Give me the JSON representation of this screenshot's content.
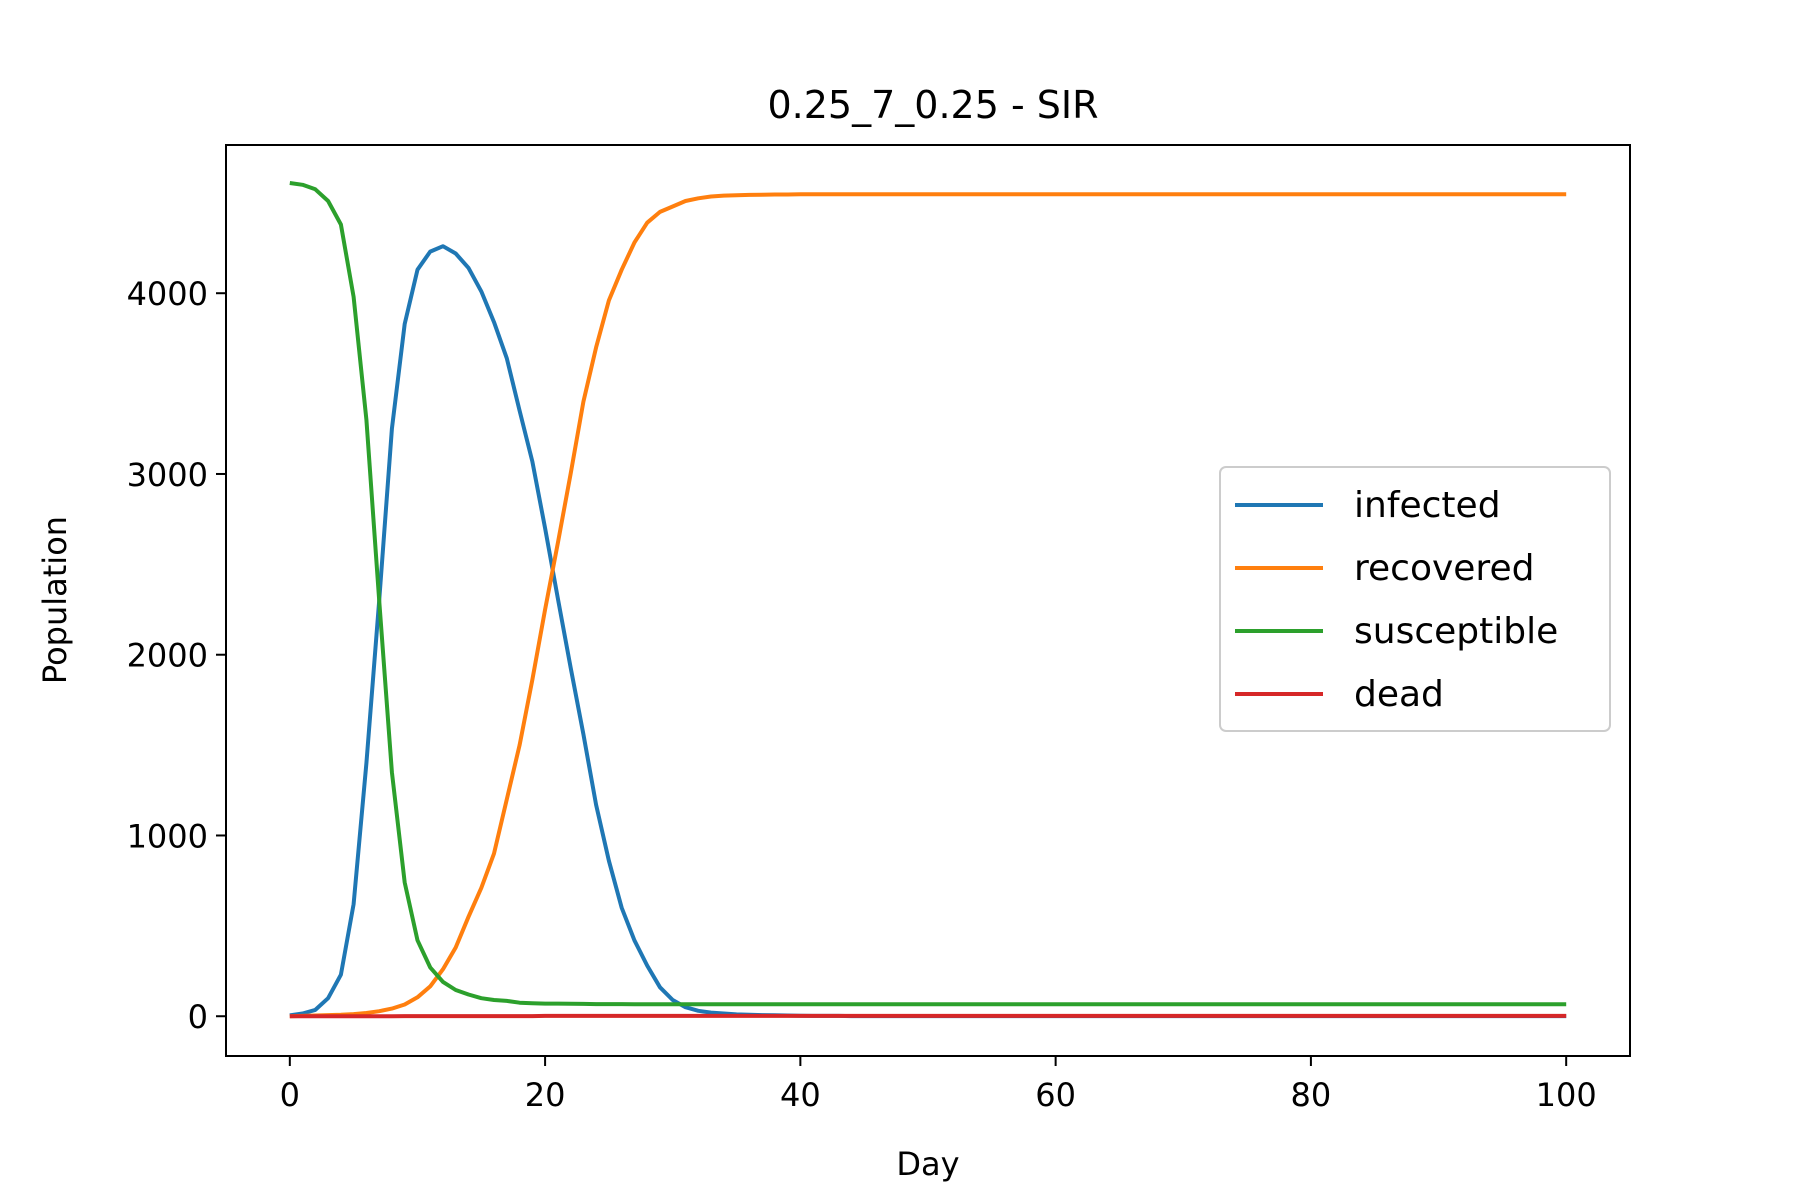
{
  "chart_data": {
    "type": "line",
    "title": "0.25_7_0.25 - SIR",
    "xlabel": "Day",
    "ylabel": "Population",
    "xlim": [
      -5,
      105
    ],
    "ylim": [
      -220,
      4820
    ],
    "x_ticks": [
      0,
      20,
      40,
      60,
      80,
      100
    ],
    "y_ticks": [
      0,
      1000,
      2000,
      3000,
      4000
    ],
    "grid": false,
    "legend_position": "center-right",
    "x": [
      0,
      1,
      2,
      3,
      4,
      5,
      6,
      7,
      8,
      9,
      10,
      11,
      12,
      13,
      14,
      15,
      16,
      17,
      18,
      19,
      20,
      21,
      22,
      23,
      24,
      25,
      26,
      27,
      28,
      29,
      30,
      31,
      32,
      33,
      34,
      35,
      36,
      37,
      38,
      39,
      40,
      41,
      42,
      43,
      44,
      45,
      46,
      47,
      48,
      49,
      50,
      51,
      52,
      53,
      54,
      55,
      56,
      57,
      58,
      59,
      60,
      61,
      62,
      63,
      64,
      65,
      66,
      67,
      68,
      69,
      70,
      71,
      72,
      73,
      74,
      75,
      76,
      77,
      78,
      79,
      80,
      81,
      82,
      83,
      84,
      85,
      86,
      87,
      88,
      89,
      90,
      91,
      92,
      93,
      94,
      95,
      96,
      97,
      98,
      99,
      100
    ],
    "series": [
      {
        "name": "infected",
        "color": "#1f77b4",
        "values": [
          5,
          15,
          35,
          100,
          230,
          620,
          1400,
          2300,
          3250,
          3830,
          4130,
          4230,
          4260,
          4220,
          4140,
          4010,
          3840,
          3640,
          3350,
          3070,
          2700,
          2310,
          1930,
          1560,
          1170,
          860,
          600,
          420,
          280,
          160,
          90,
          50,
          30,
          20,
          15,
          10,
          8,
          6,
          5,
          4,
          3,
          2,
          2,
          2,
          1,
          1,
          1,
          1,
          1,
          1,
          1,
          1,
          1,
          1,
          1,
          1,
          1,
          1,
          1,
          1,
          1,
          1,
          1,
          1,
          1,
          1,
          1,
          1,
          1,
          1,
          1,
          1,
          1,
          1,
          1,
          1,
          1,
          1,
          1,
          1,
          1,
          1,
          1,
          1,
          1,
          1,
          1,
          1,
          1,
          1,
          1,
          1,
          1,
          1,
          1,
          1,
          1,
          1,
          1,
          1,
          1
        ]
      },
      {
        "name": "recovered",
        "color": "#ff7f0e",
        "values": [
          0,
          2,
          4,
          6,
          8,
          12,
          18,
          28,
          42,
          65,
          105,
          165,
          260,
          380,
          550,
          710,
          900,
          1200,
          1500,
          1860,
          2250,
          2620,
          3000,
          3400,
          3700,
          3960,
          4130,
          4280,
          4390,
          4450,
          4480,
          4510,
          4525,
          4535,
          4540,
          4542,
          4544,
          4545,
          4546,
          4546,
          4547,
          4547,
          4547,
          4547,
          4548,
          4548,
          4548,
          4548,
          4548,
          4548,
          4548,
          4548,
          4548,
          4548,
          4548,
          4548,
          4548,
          4548,
          4548,
          4548,
          4548,
          4548,
          4548,
          4548,
          4548,
          4548,
          4548,
          4548,
          4548,
          4548,
          4548,
          4548,
          4548,
          4548,
          4548,
          4548,
          4548,
          4548,
          4548,
          4548,
          4548,
          4548,
          4548,
          4548,
          4548,
          4548,
          4548,
          4548,
          4548,
          4548,
          4548,
          4548,
          4548,
          4548,
          4548,
          4548,
          4548,
          4548,
          4548,
          4548,
          4548
        ]
      },
      {
        "name": "susceptible",
        "color": "#2ca02c",
        "values": [
          4610,
          4600,
          4575,
          4510,
          4380,
          3980,
          3300,
          2300,
          1350,
          740,
          420,
          270,
          190,
          145,
          120,
          100,
          90,
          85,
          75,
          72,
          70,
          70,
          69,
          68,
          67,
          67,
          67,
          66,
          66,
          66,
          66,
          66,
          66,
          66,
          66,
          66,
          66,
          66,
          66,
          66,
          66,
          66,
          66,
          66,
          66,
          66,
          66,
          66,
          66,
          66,
          66,
          66,
          66,
          66,
          66,
          66,
          66,
          66,
          66,
          66,
          66,
          66,
          66,
          66,
          66,
          66,
          66,
          66,
          66,
          66,
          66,
          66,
          66,
          66,
          66,
          66,
          66,
          66,
          66,
          66,
          66,
          66,
          66,
          66,
          66,
          66,
          66,
          66,
          66,
          66,
          66,
          66,
          66,
          66,
          66,
          66,
          66,
          66,
          66,
          66,
          66
        ]
      },
      {
        "name": "dead",
        "color": "#d62728",
        "values": [
          0,
          0,
          0,
          0,
          0,
          0,
          0,
          0,
          0,
          1,
          1,
          1,
          1,
          1,
          1,
          1,
          1,
          1,
          1,
          1,
          2,
          2,
          2,
          2,
          2,
          2,
          2,
          2,
          2,
          2,
          2,
          2,
          2,
          2,
          2,
          2,
          2,
          2,
          2,
          2,
          2,
          2,
          2,
          2,
          2,
          2,
          2,
          2,
          2,
          2,
          2,
          2,
          2,
          2,
          2,
          2,
          2,
          2,
          2,
          2,
          2,
          2,
          2,
          2,
          2,
          2,
          2,
          2,
          2,
          2,
          2,
          2,
          2,
          2,
          2,
          2,
          2,
          2,
          2,
          2,
          2,
          2,
          2,
          2,
          2,
          2,
          2,
          2,
          2,
          2,
          2,
          2,
          2,
          2,
          2,
          2,
          2,
          2,
          2,
          2,
          2
        ]
      }
    ]
  }
}
